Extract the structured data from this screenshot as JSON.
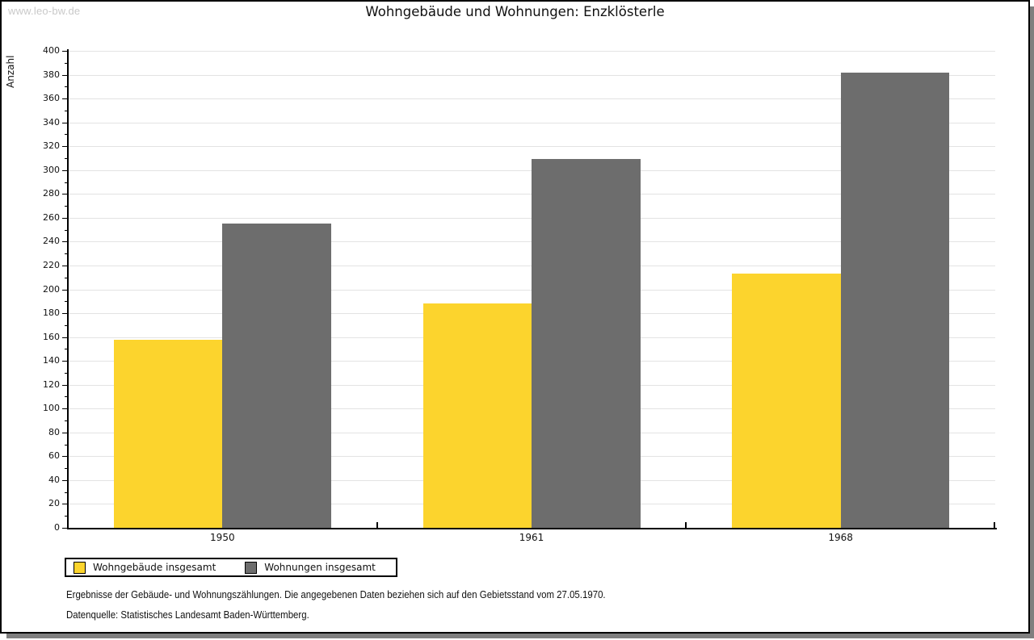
{
  "watermark": "www.leo-bw.de",
  "chart_data": {
    "type": "bar",
    "title": "Wohngebäude und Wohnungen: Enzklösterle",
    "ylabel": "Anzahl",
    "xlabel": "",
    "categories": [
      "1950",
      "1961",
      "1968"
    ],
    "series": [
      {
        "name": "Wohngebäude insgesamt",
        "color": "#fcd42d",
        "values": [
          158,
          188,
          213
        ]
      },
      {
        "name": "Wohnungen insgesamt",
        "color": "#6d6d6d",
        "values": [
          255,
          309,
          382
        ]
      }
    ],
    "ylim": [
      0,
      400
    ],
    "ytick_step": 20,
    "ytick_minor_step": 10,
    "grid": true,
    "legend_position": "bottom-left"
  },
  "footer": {
    "line1": "Ergebnisse der Gebäude- und Wohnungszählungen. Die angegebenen Daten beziehen sich auf den Gebietsstand vom 27.05.1970.",
    "line2": "Datenquelle: Statistisches Landesamt Baden-Württemberg."
  }
}
